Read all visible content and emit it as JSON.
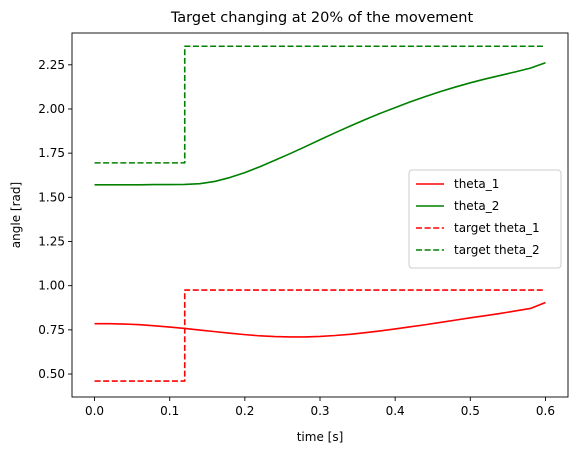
{
  "chart_data": {
    "type": "line",
    "title": "Target changing at 20% of the movement",
    "xlabel": "time [s]",
    "ylabel": "angle [rad]",
    "xlim": [
      -0.03,
      0.63
    ],
    "ylim": [
      0.37,
      2.43
    ],
    "grid": false,
    "legend_position": "center-right",
    "x_ticks": [
      {
        "value": 0.0,
        "label": "0.0"
      },
      {
        "value": 0.1,
        "label": "0.1"
      },
      {
        "value": 0.2,
        "label": "0.2"
      },
      {
        "value": 0.3,
        "label": "0.3"
      },
      {
        "value": 0.4,
        "label": "0.4"
      },
      {
        "value": 0.5,
        "label": "0.5"
      },
      {
        "value": 0.6,
        "label": "0.6"
      }
    ],
    "y_ticks": [
      {
        "value": 0.5,
        "label": "0.50"
      },
      {
        "value": 0.75,
        "label": "0.75"
      },
      {
        "value": 1.0,
        "label": "1.00"
      },
      {
        "value": 1.25,
        "label": "1.25"
      },
      {
        "value": 1.5,
        "label": "1.50"
      },
      {
        "value": 1.75,
        "label": "1.75"
      },
      {
        "value": 2.0,
        "label": "2.00"
      },
      {
        "value": 2.25,
        "label": "2.25"
      }
    ],
    "series": [
      {
        "name": "theta_1",
        "color": "#ff0000",
        "dash": "solid",
        "x": [
          0.0,
          0.02,
          0.04,
          0.06,
          0.08,
          0.1,
          0.12,
          0.14,
          0.16,
          0.18,
          0.2,
          0.22,
          0.24,
          0.26,
          0.28,
          0.3,
          0.32,
          0.34,
          0.36,
          0.38,
          0.4,
          0.42,
          0.44,
          0.46,
          0.48,
          0.5,
          0.52,
          0.54,
          0.56,
          0.58,
          0.6
        ],
        "y": [
          0.785,
          0.785,
          0.783,
          0.779,
          0.773,
          0.766,
          0.758,
          0.749,
          0.74,
          0.731,
          0.723,
          0.716,
          0.712,
          0.71,
          0.71,
          0.713,
          0.718,
          0.725,
          0.734,
          0.744,
          0.755,
          0.767,
          0.779,
          0.792,
          0.805,
          0.818,
          0.83,
          0.843,
          0.857,
          0.871,
          0.905
        ]
      },
      {
        "name": "theta_2",
        "color": "#008000",
        "dash": "solid",
        "x": [
          0.0,
          0.02,
          0.04,
          0.06,
          0.08,
          0.1,
          0.12,
          0.14,
          0.16,
          0.18,
          0.2,
          0.22,
          0.24,
          0.26,
          0.28,
          0.3,
          0.32,
          0.34,
          0.36,
          0.38,
          0.4,
          0.42,
          0.44,
          0.46,
          0.48,
          0.5,
          0.52,
          0.54,
          0.56,
          0.58,
          0.6
        ],
        "y": [
          1.571,
          1.571,
          1.571,
          1.571,
          1.572,
          1.572,
          1.573,
          1.577,
          1.59,
          1.612,
          1.64,
          1.673,
          1.71,
          1.747,
          1.786,
          1.826,
          1.865,
          1.903,
          1.94,
          1.975,
          2.008,
          2.04,
          2.07,
          2.098,
          2.124,
          2.148,
          2.17,
          2.19,
          2.21,
          2.231,
          2.262
        ]
      },
      {
        "name": "target theta_1",
        "color": "#ff0000",
        "dash": "dashed",
        "x": [
          0.0,
          0.12,
          0.12,
          0.6
        ],
        "y": [
          0.46,
          0.46,
          0.975,
          0.975
        ]
      },
      {
        "name": "target theta_2",
        "color": "#008000",
        "dash": "dashed",
        "x": [
          0.0,
          0.12,
          0.12,
          0.6
        ],
        "y": [
          1.695,
          1.695,
          2.355,
          2.355
        ]
      }
    ]
  }
}
